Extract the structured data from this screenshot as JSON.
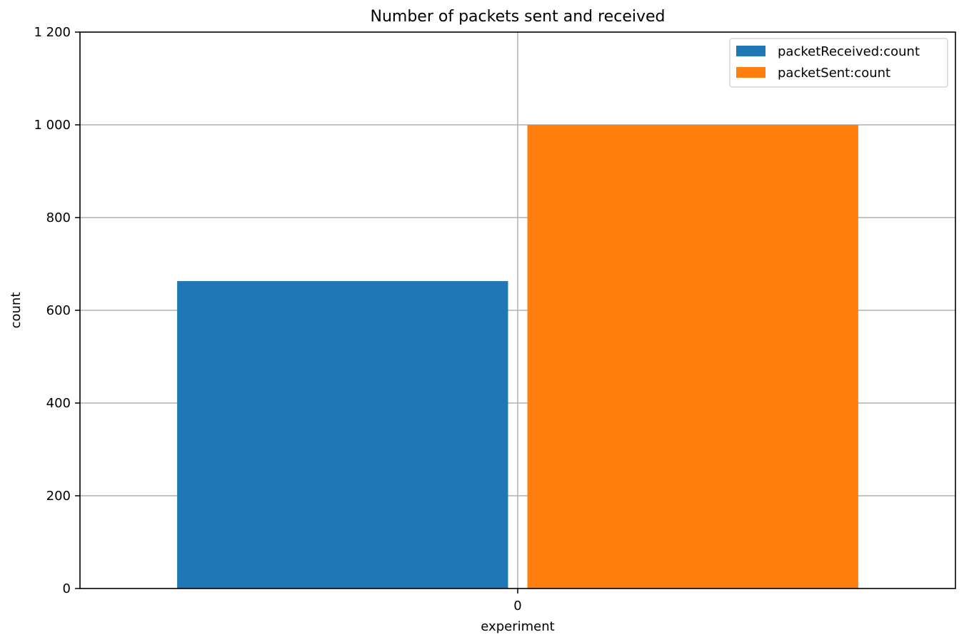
{
  "chart_data": {
    "type": "bar",
    "title": "Number of packets sent and received",
    "xlabel": "experiment",
    "ylabel": "count",
    "categories": [
      "0"
    ],
    "series": [
      {
        "name": "packetReceived:count",
        "values": [
          663
        ],
        "color": "#1f77b4"
      },
      {
        "name": "packetSent:count",
        "values": [
          1000
        ],
        "color": "#ff7f0e"
      }
    ],
    "ylim": [
      0,
      1200
    ],
    "y_ticks": [
      0,
      200,
      400,
      600,
      800,
      1000,
      1200
    ],
    "y_tick_labels": [
      "0",
      "200",
      "400",
      "600",
      "800",
      "1 000",
      "1 200"
    ],
    "grid": true,
    "legend_position": "top-right"
  }
}
